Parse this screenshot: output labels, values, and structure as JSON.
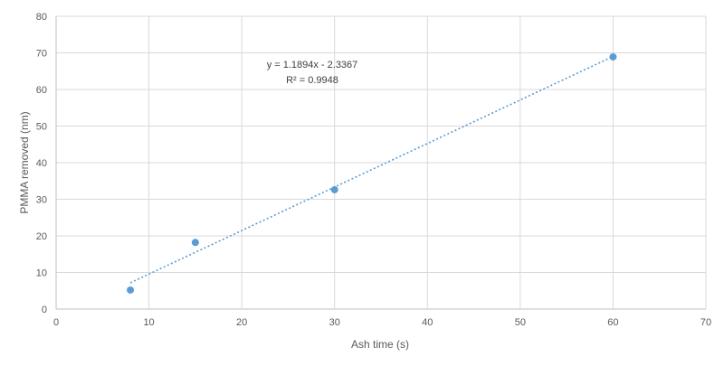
{
  "chart_data": {
    "type": "scatter",
    "xlabel": "Ash time (s)",
    "ylabel": "PMMA removed (nm)",
    "xlim": [
      0,
      70
    ],
    "ylim": [
      0,
      80
    ],
    "x_ticks": [
      0,
      10,
      20,
      30,
      40,
      50,
      60,
      70
    ],
    "y_ticks": [
      0,
      10,
      20,
      30,
      40,
      50,
      60,
      70,
      80
    ],
    "grid": true,
    "legend": "none",
    "marker_color": "#5B9BD5",
    "trendline_color": "#5B9BD5",
    "series": [
      {
        "x": [
          8,
          15,
          30,
          60
        ],
        "y": [
          5.2,
          18.2,
          32.6,
          68.9
        ]
      }
    ],
    "trendline": {
      "type": "linear",
      "slope": 1.1894,
      "intercept": -2.3367,
      "x_range": [
        8,
        60
      ],
      "equation": "y = 1.1894x - 2.3367",
      "r_squared": "R² = 0.9948"
    }
  }
}
